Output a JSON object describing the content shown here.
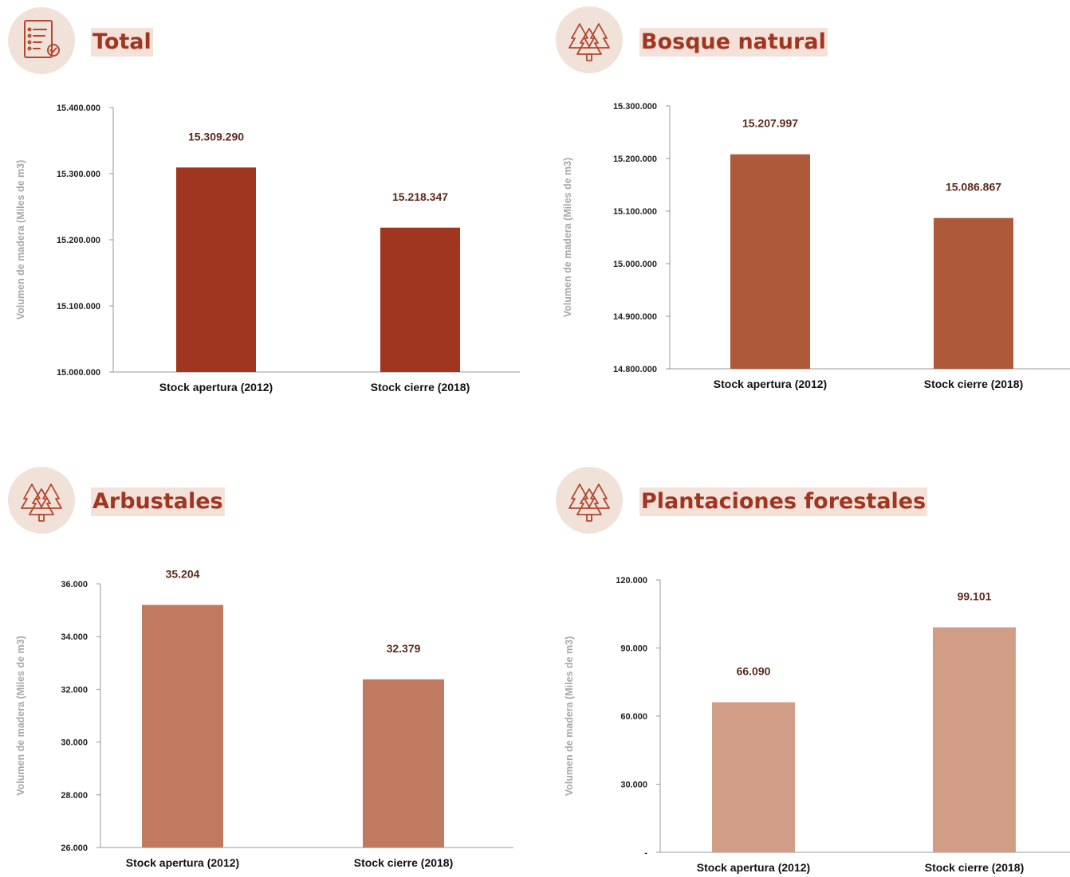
{
  "panels": [
    {
      "title": "Total",
      "icon": "checklist-icon",
      "chart_data": {
        "type": "bar",
        "categories": [
          "Stock apertura (2012)",
          "Stock cierre (2018)"
        ],
        "values": [
          15309290,
          15218347
        ],
        "value_labels": [
          "15.309.290",
          "15.218.347"
        ],
        "ylabel": "Volumen de madera (Miles de m3)",
        "ylim": [
          15000000,
          15400000
        ],
        "yticks": [
          "15.000.000",
          "15.100.000",
          "15.200.000",
          "15.300.000",
          "15.400.000"
        ],
        "color": "#a03520"
      }
    },
    {
      "title": "Bosque natural",
      "icon": "trees-icon",
      "chart_data": {
        "type": "bar",
        "categories": [
          "Stock apertura (2012)",
          "Stock cierre (2018)"
        ],
        "values": [
          15207997,
          15086867
        ],
        "value_labels": [
          "15.207.997",
          "15.086.867"
        ],
        "ylabel": "Volumen de madera (Miles de m3)",
        "ylim": [
          14800000,
          15300000
        ],
        "yticks": [
          "14.800.000",
          "14.900.000",
          "15.000.000",
          "15.100.000",
          "15.200.000",
          "15.300.000"
        ],
        "color": "#af593b"
      }
    },
    {
      "title": "Arbustales",
      "icon": "trees-icon",
      "chart_data": {
        "type": "bar",
        "categories": [
          "Stock apertura (2012)",
          "Stock cierre (2018)"
        ],
        "values": [
          35204,
          32379
        ],
        "value_labels": [
          "35.204",
          "32.379"
        ],
        "ylabel": "Volumen de madera (Miles de m3)",
        "ylim": [
          26000,
          36000
        ],
        "yticks": [
          "26.000",
          "28.000",
          "30.000",
          "32.000",
          "34.000",
          "36.000"
        ],
        "color": "#c07a5f"
      }
    },
    {
      "title": "Plantaciones forestales",
      "icon": "trees-icon",
      "chart_data": {
        "type": "bar",
        "categories": [
          "Stock apertura (2012)",
          "Stock cierre (2018)"
        ],
        "values": [
          66090,
          99101
        ],
        "value_labels": [
          "66.090",
          "99.101"
        ],
        "ylabel": "Volumen de madera (Miles de m3)",
        "ylim": [
          0,
          120000
        ],
        "yticks": [
          "-",
          "30.000",
          "60.000",
          "90.000",
          "120.000"
        ],
        "color": "#d19d87"
      }
    }
  ]
}
